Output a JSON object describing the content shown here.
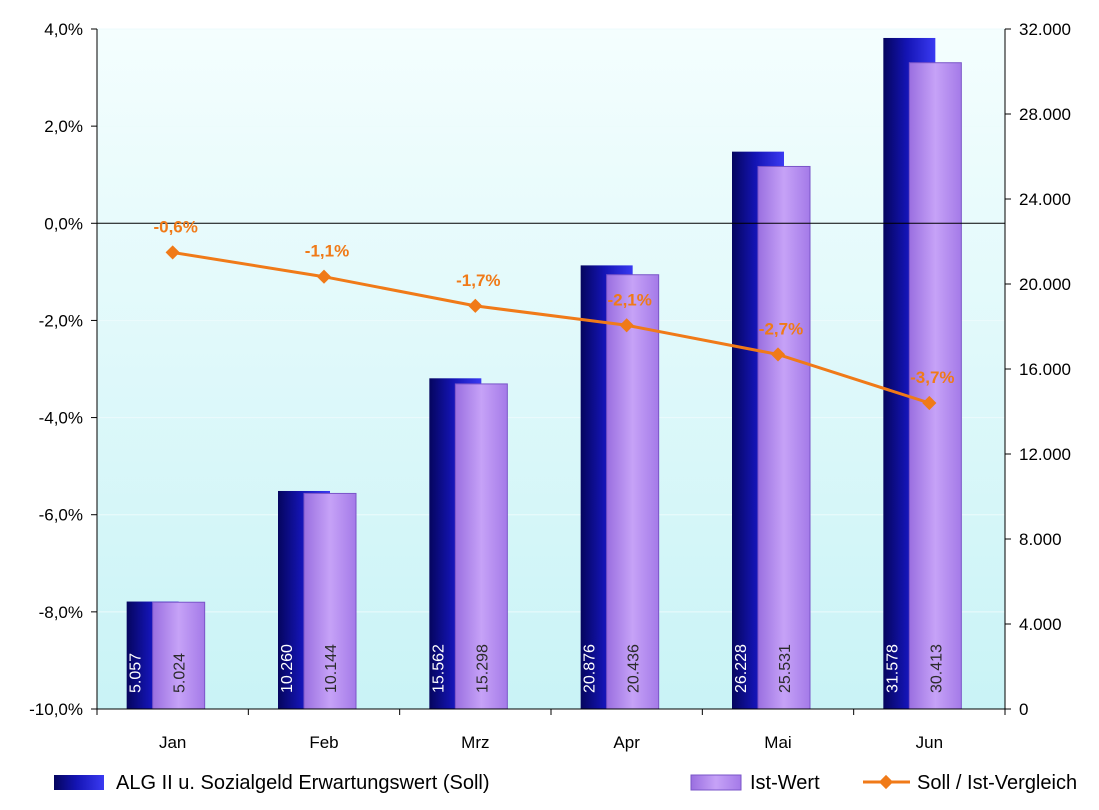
{
  "chart_data": {
    "type": "bar",
    "categories": [
      "Jan",
      "Feb",
      "Mrz",
      "Apr",
      "Mai",
      "Jun"
    ],
    "series": [
      {
        "name": "ALG II u. Sozialgeld Erwartungswert (Soll)",
        "type": "bar",
        "axis": "right",
        "values": [
          5057,
          10260,
          15562,
          20876,
          26228,
          31578
        ],
        "labels": [
          "5.057",
          "10.260",
          "15.562",
          "20.876",
          "26.228",
          "31.578"
        ],
        "color": "#1a1acc"
      },
      {
        "name": "Ist-Wert",
        "type": "bar",
        "axis": "right",
        "values": [
          5024,
          10144,
          15298,
          20436,
          25531,
          30413
        ],
        "labels": [
          "5.024",
          "10.144",
          "15.298",
          "20.436",
          "25.531",
          "30.413"
        ],
        "color": "#b88ef0"
      },
      {
        "name": "Soll / Ist-Vergleich",
        "type": "line",
        "axis": "left",
        "values": [
          -0.6,
          -1.1,
          -1.7,
          -2.1,
          -2.7,
          -3.7
        ],
        "labels": [
          "-0,6%",
          "-1,1%",
          "-1,7%",
          "-2,1%",
          "-2,7%",
          "-3,7%"
        ],
        "color": "#f07a18"
      }
    ],
    "left_axis": {
      "min": -10,
      "max": 4,
      "ticks": [
        4,
        2,
        0,
        -2,
        -4,
        -6,
        -8,
        -10
      ],
      "tick_labels": [
        "4,0%",
        "2,0%",
        "0,0%",
        "-2,0%",
        "-4,0%",
        "-6,0%",
        "-8,0%",
        "-10,0%"
      ]
    },
    "right_axis": {
      "min": 0,
      "max": 32000,
      "ticks": [
        32000,
        28000,
        24000,
        20000,
        16000,
        12000,
        8000,
        4000,
        0
      ],
      "tick_labels": [
        "32.000",
        "28.000",
        "24.000",
        "20.000",
        "16.000",
        "12.000",
        "8.000",
        "4.000",
        "0"
      ]
    },
    "grid": true,
    "legend_position": "bottom",
    "plot_background": "#d8f6f8"
  }
}
